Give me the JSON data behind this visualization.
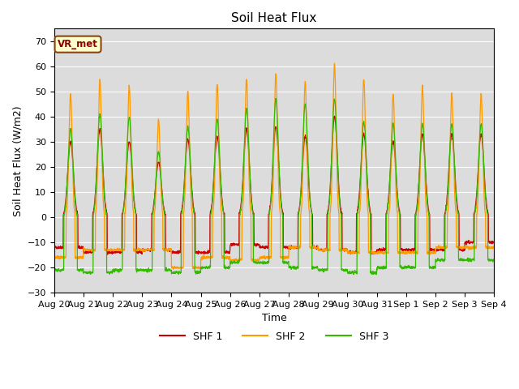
{
  "title": "Soil Heat Flux",
  "xlabel": "Time",
  "ylabel": "Soil Heat Flux (W/m2)",
  "ylim": [
    -30,
    75
  ],
  "yticks": [
    -30,
    -20,
    -10,
    0,
    10,
    20,
    30,
    40,
    50,
    60,
    70
  ],
  "legend_labels": [
    "SHF 1",
    "SHF 2",
    "SHF 3"
  ],
  "colors": [
    "#cc0000",
    "#ff9900",
    "#33bb00"
  ],
  "vr_met_label": "VR_met",
  "bg_color": "#dcdcdc",
  "fig_bg_color": "#ffffff",
  "title_fontsize": 11,
  "label_fontsize": 9,
  "tick_fontsize": 8,
  "num_days": 15,
  "pts_per_day": 144
}
